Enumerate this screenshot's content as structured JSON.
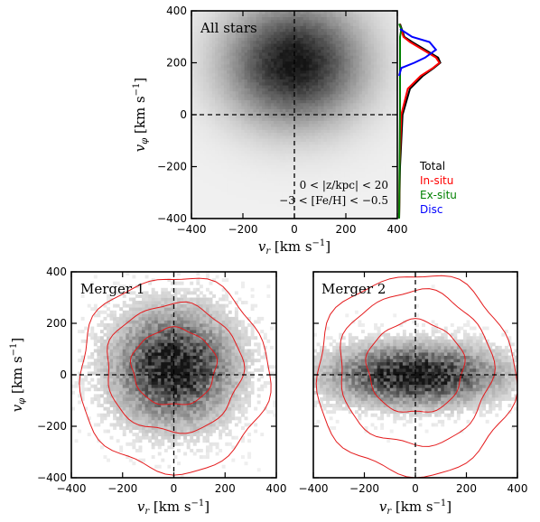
{
  "chart_data": [
    {
      "id": "top",
      "type": "heatmap",
      "title": "",
      "xlabel": "v_r [km s^-1]",
      "ylabel": "v_φ [km s^-1]",
      "xlim": [
        -400,
        400
      ],
      "ylim": [
        -400,
        400
      ],
      "xticks": [
        -400,
        -200,
        0,
        200,
        400
      ],
      "yticks": [
        -400,
        -200,
        0,
        200,
        400
      ],
      "panel_label": "All stars",
      "cuts": [
        "0 < |z/kpc| < 20",
        "−3 < [Fe/H] < −0.5"
      ],
      "density_peaks": [
        {
          "vr": 0,
          "vphi": 200,
          "sigma_r": 170,
          "sigma_phi": 150,
          "weight": 1.0
        }
      ],
      "contours": [],
      "side_distribution": {
        "axis": "vphi",
        "legend": [
          "Total",
          "In-situ",
          "Ex-situ",
          "Disc"
        ],
        "colors": [
          "#000000",
          "#ff0000",
          "#008000",
          "#0000ff"
        ],
        "series": [
          {
            "name": "Total",
            "vphi": [
              -400,
              -200,
              0,
              100,
              150,
              180,
              200,
              220,
              250,
              280,
              300,
              350
            ],
            "f": [
              0,
              0.02,
              0.08,
              0.25,
              0.55,
              0.8,
              0.95,
              0.9,
              0.6,
              0.3,
              0.12,
              0.02
            ]
          },
          {
            "name": "In-situ",
            "vphi": [
              -400,
              -200,
              0,
              100,
              150,
              180,
              200,
              220,
              250,
              280,
              300,
              350
            ],
            "f": [
              0,
              0.01,
              0.05,
              0.2,
              0.5,
              0.78,
              0.93,
              0.85,
              0.55,
              0.25,
              0.1,
              0.01
            ]
          },
          {
            "name": "Ex-situ",
            "vphi": [
              -400,
              -200,
              0,
              100,
              200,
              300,
              330,
              350
            ],
            "f": [
              0,
              0.01,
              0.02,
              0.02,
              0.02,
              0.02,
              0.05,
              0.0
            ]
          },
          {
            "name": "Disc",
            "vphi": [
              150,
              180,
              200,
              220,
              250,
              280,
              300,
              330
            ],
            "f": [
              0,
              0.05,
              0.35,
              0.6,
              0.85,
              0.7,
              0.3,
              0.02
            ]
          }
        ]
      }
    },
    {
      "id": "left",
      "type": "heatmap",
      "title": "",
      "xlabel": "v_r [km s^-1]",
      "ylabel": "v_φ [km s^-1]",
      "xlim": [
        -400,
        400
      ],
      "ylim": [
        -400,
        400
      ],
      "xticks": [
        -400,
        -200,
        0,
        200,
        400
      ],
      "yticks": [
        -400,
        -200,
        0,
        200,
        400
      ],
      "panel_label": "Merger 1",
      "cuts": [],
      "density_peaks": [
        {
          "vr": 0,
          "vphi": 30,
          "sigma_r": 140,
          "sigma_phi": 130,
          "weight": 1.0
        }
      ],
      "contours": [
        {
          "vr": 0,
          "vphi": 30,
          "rx": 165,
          "ry": 150
        },
        {
          "vr": 0,
          "vphi": 25,
          "rx": 265,
          "ry": 250
        },
        {
          "vr": 0,
          "vphi": 0,
          "rx": 370,
          "ry": 380
        }
      ]
    },
    {
      "id": "right",
      "type": "heatmap",
      "title": "",
      "xlabel": "v_r [km s^-1]",
      "ylabel": "",
      "xlim": [
        -400,
        400
      ],
      "ylim": [
        -400,
        400
      ],
      "xticks": [
        -400,
        -200,
        0,
        200,
        400
      ],
      "yticks": [
        -400,
        -200,
        0,
        200,
        400
      ],
      "panel_label": "Merger 2",
      "cuts": [],
      "density_peaks": [
        {
          "vr": 0,
          "vphi": 0,
          "sigma_r": 200,
          "sigma_phi": 70,
          "weight": 1.0
        }
      ],
      "contours": [
        {
          "vr": 0,
          "vphi": 30,
          "rx": 190,
          "ry": 180
        },
        {
          "vr": 0,
          "vphi": 25,
          "rx": 300,
          "ry": 300
        },
        {
          "vr": 0,
          "vphi": 0,
          "rx": 390,
          "ry": 390
        }
      ]
    }
  ]
}
